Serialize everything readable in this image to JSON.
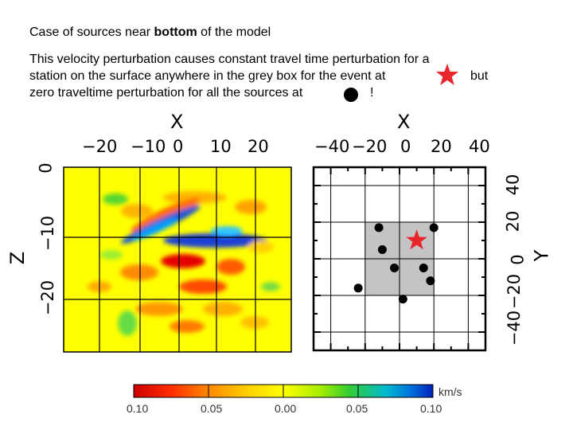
{
  "heading": {
    "prefix": "Case of sources near ",
    "bold": "bottom",
    "suffix": " of the model"
  },
  "description": {
    "line1": "This velocity perturbation causes constant travel time perturbation for a",
    "line2_start": "station on the surface anywhere in the grey box for the event at",
    "line2_end": "but",
    "line3_start": "zero traveltime perturbation for all the sources at",
    "line3_end": "!"
  },
  "legend_symbols": {
    "event": "star-icon",
    "sources": "dot-icon",
    "event_color": "#e8262b",
    "source_color": "#000000"
  },
  "left_panel": {
    "x_axis_label": "X",
    "x_ticks": [
      "−20",
      "−10",
      "0",
      "10",
      "20"
    ],
    "z_axis_label": "Z",
    "z_ticks": [
      "0",
      "−10",
      "−20"
    ]
  },
  "right_panel": {
    "x_axis_label": "X",
    "x_ticks": [
      "−40",
      "−20",
      "0",
      "20",
      "40"
    ],
    "y_axis_label": "Y",
    "y_ticks": [
      "40",
      "20",
      "0",
      "−20",
      "−40"
    ],
    "grey_box": {
      "x_range": [
        -20,
        20
      ],
      "y_range": [
        -20,
        20
      ],
      "color": "#c4c4c4"
    },
    "sources": [
      {
        "x": -12,
        "y": 17
      },
      {
        "x": 20,
        "y": 17
      },
      {
        "x": -10,
        "y": 5
      },
      {
        "x": -3,
        "y": -5
      },
      {
        "x": 14,
        "y": -5
      },
      {
        "x": 18,
        "y": -12
      },
      {
        "x": -24,
        "y": -16
      },
      {
        "x": 2,
        "y": -22
      }
    ],
    "event": {
      "x": 10,
      "y": 10
    }
  },
  "colorbar": {
    "unit": "km/s",
    "tick_labels": [
      "0.10",
      "0.05",
      "0.00",
      "0.05",
      "0.10"
    ],
    "colors": [
      "#cc0000",
      "#ff3300",
      "#ff8800",
      "#ffcc00",
      "#ffff00",
      "#aaee00",
      "#33cc33",
      "#00bbaa",
      "#0077dd",
      "#0022bb"
    ]
  }
}
